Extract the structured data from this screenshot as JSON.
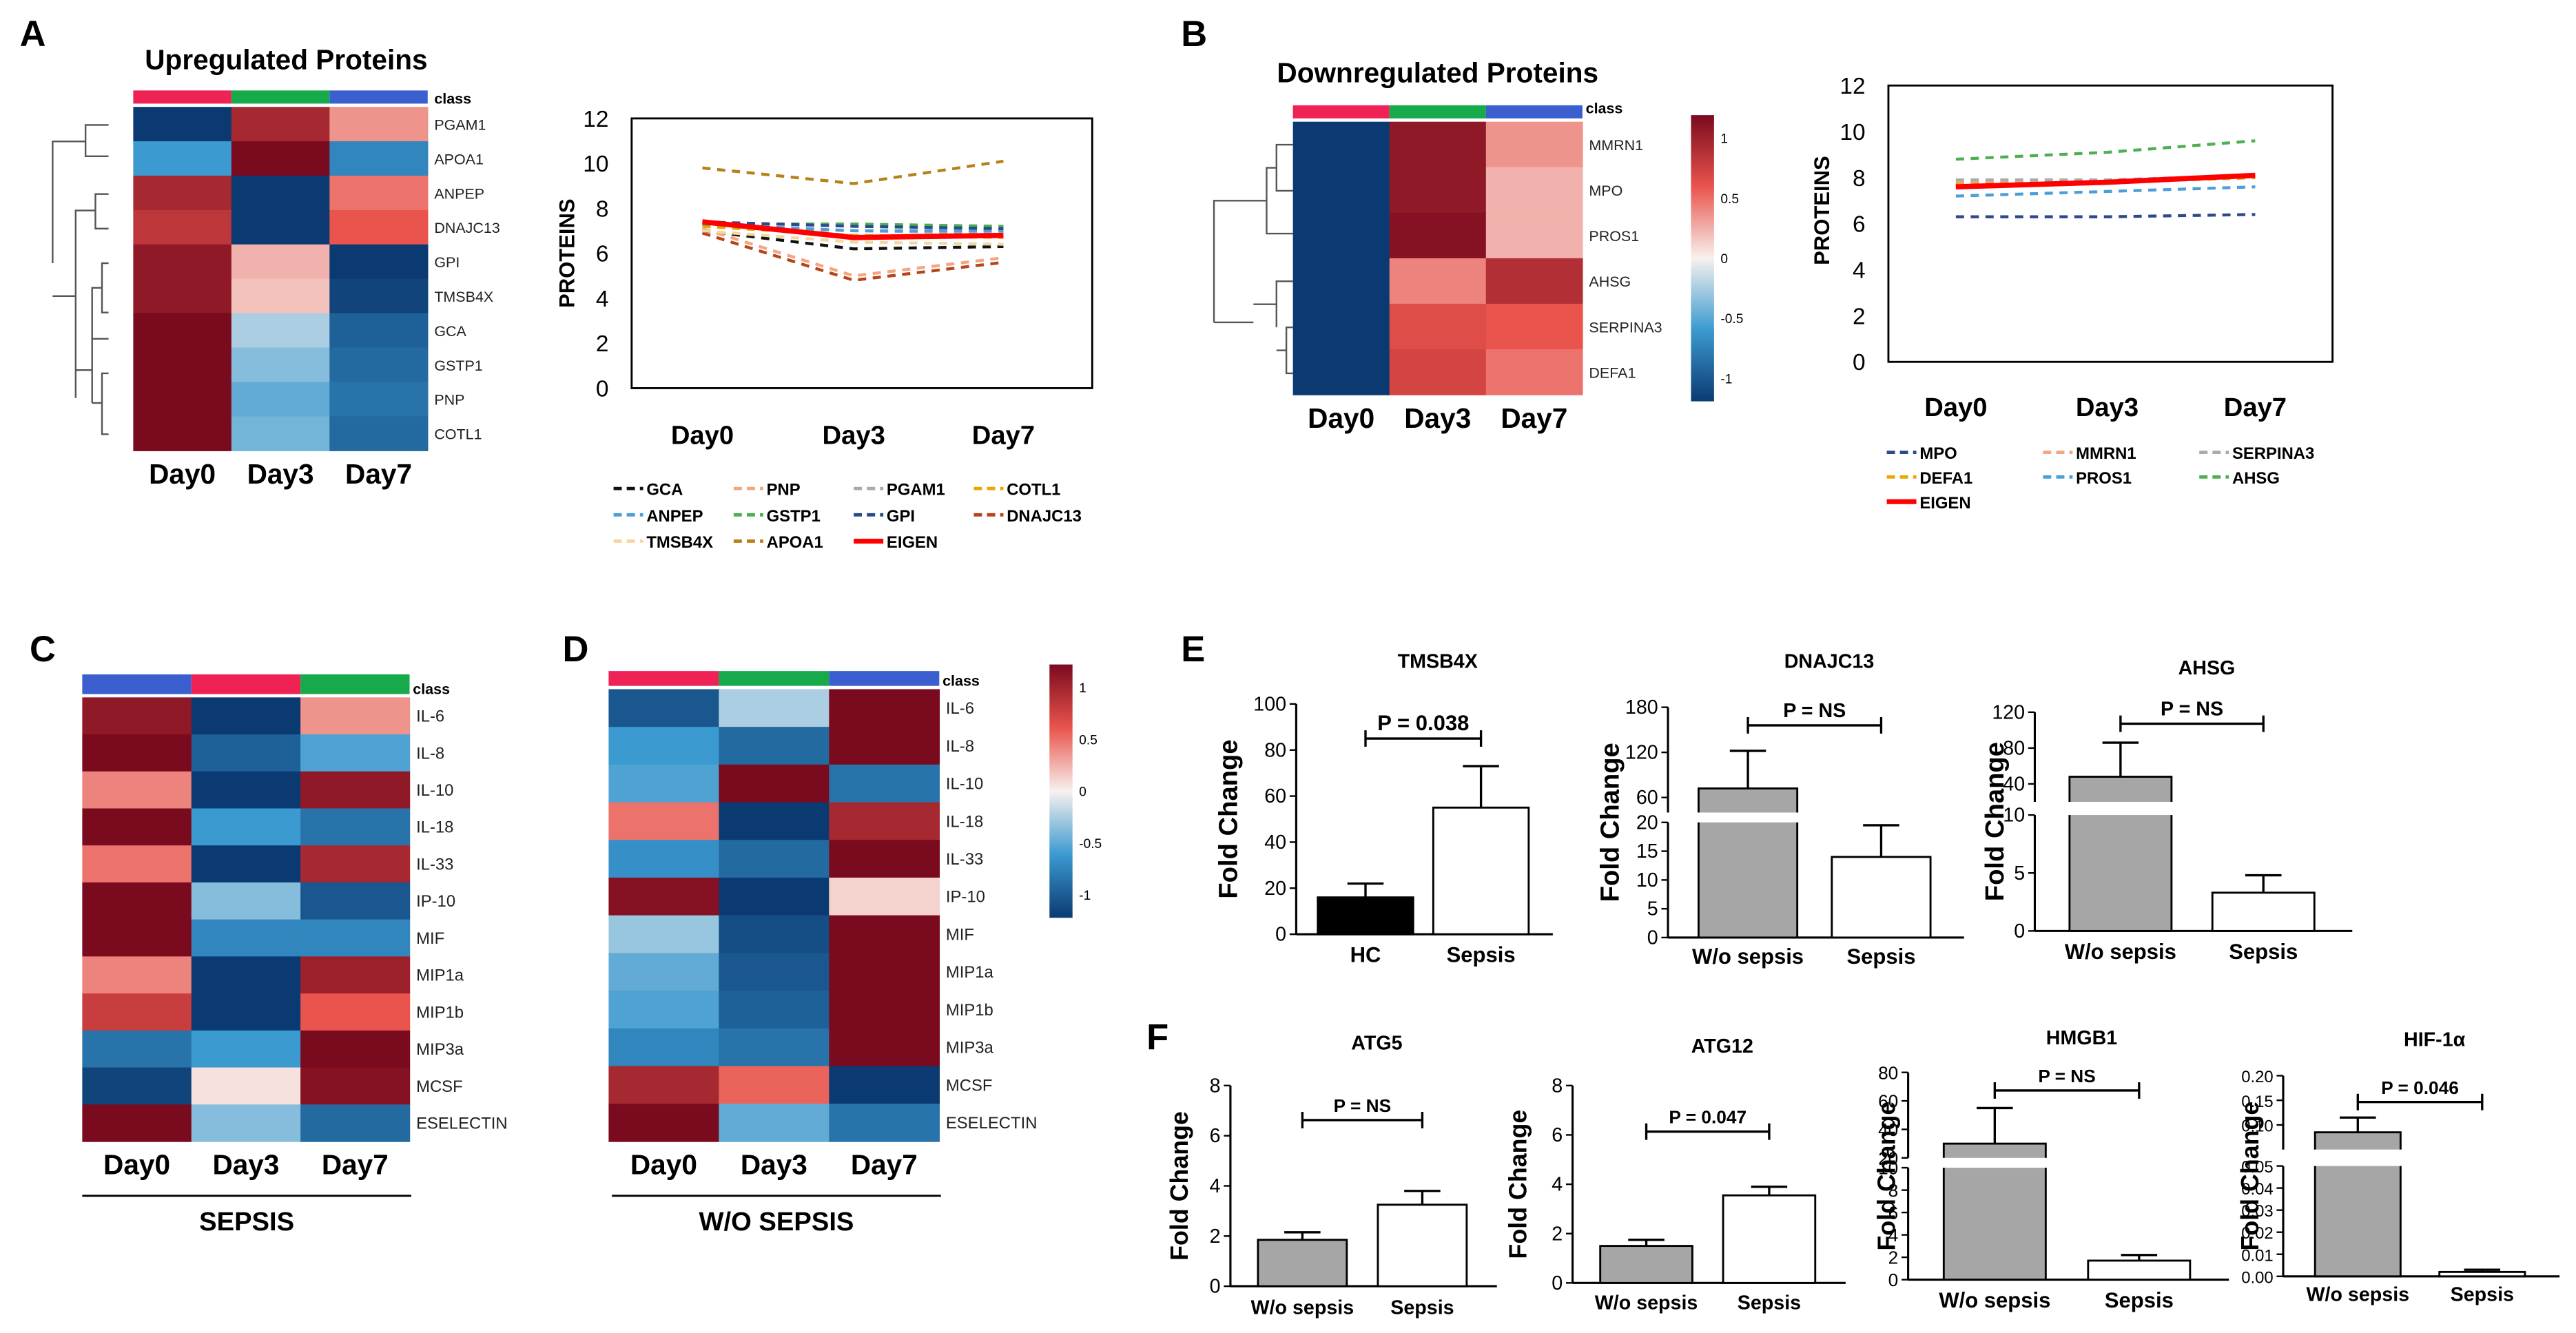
{
  "panels": {
    "A": {
      "letter": "A",
      "heatmap": {
        "title": "Upregulated Proteins",
        "class_label": "class",
        "columns": [
          "Day0",
          "Day3",
          "Day7"
        ],
        "rows": [
          {
            "name": "PGAM1",
            "values": [
              -1.0,
              0.8,
              0.3
            ]
          },
          {
            "name": "APOA1",
            "values": [
              -0.5,
              1.0,
              -0.6
            ]
          },
          {
            "name": "ANPEP",
            "values": [
              0.8,
              -1.0,
              0.4
            ]
          },
          {
            "name": "DNAJC13",
            "values": [
              0.7,
              -1.0,
              0.5
            ]
          },
          {
            "name": "GPI",
            "values": [
              0.9,
              0.2,
              -1.0
            ]
          },
          {
            "name": "TMSB4X",
            "values": [
              0.9,
              0.15,
              -0.95
            ]
          },
          {
            "name": "GCA",
            "values": [
              1.0,
              -0.2,
              -0.8
            ]
          },
          {
            "name": "GSTP1",
            "values": [
              1.0,
              -0.3,
              -0.75
            ]
          },
          {
            "name": "PNP",
            "values": [
              1.0,
              -0.4,
              -0.7
            ]
          },
          {
            "name": "COTL1",
            "values": [
              1.0,
              -0.35,
              -0.75
            ]
          }
        ]
      },
      "chart_data": {
        "type": "line",
        "ylabel": "PROTEINS",
        "categories": [
          "Day0",
          "Day3",
          "Day7"
        ],
        "ylim": [
          0,
          12
        ],
        "yticks": [
          0,
          2,
          4,
          6,
          8,
          10,
          12
        ],
        "series": [
          {
            "name": "GCA",
            "values": [
              7.0,
              6.2,
              6.3
            ],
            "color": "#111111",
            "dash": true
          },
          {
            "name": "PNP",
            "values": [
              7.1,
              5.0,
              5.8
            ],
            "color": "#f4a582",
            "dash": true
          },
          {
            "name": "PGAM1",
            "values": [
              7.2,
              7.0,
              6.9
            ],
            "color": "#aaaaaa",
            "dash": true
          },
          {
            "name": "COTL1",
            "values": [
              7.2,
              6.8,
              6.7
            ],
            "color": "#e8a800",
            "dash": true
          },
          {
            "name": "ANPEP",
            "values": [
              7.3,
              7.0,
              7.0
            ],
            "color": "#4c9ed9",
            "dash": true
          },
          {
            "name": "GSTP1",
            "values": [
              7.3,
              7.3,
              7.2
            ],
            "color": "#4caf50",
            "dash": true
          },
          {
            "name": "GPI",
            "values": [
              7.4,
              7.2,
              7.1
            ],
            "color": "#2b4a8a",
            "dash": true
          },
          {
            "name": "DNAJC13",
            "values": [
              6.9,
              4.8,
              5.6
            ],
            "color": "#b5451b",
            "dash": true
          },
          {
            "name": "TMSB4X",
            "values": [
              7.0,
              6.5,
              6.4
            ],
            "color": "#f2d7a0",
            "dash": true
          },
          {
            "name": "APOA1",
            "values": [
              9.8,
              9.1,
              10.1
            ],
            "color": "#b7801a",
            "dash": true
          },
          {
            "name": "EIGEN",
            "values": [
              7.4,
              6.7,
              6.8
            ],
            "color": "#ff0000",
            "dash": false
          }
        ]
      }
    },
    "B": {
      "letter": "B",
      "heatmap": {
        "title": "Downregulated Proteins",
        "class_label": "class",
        "columns": [
          "Day0",
          "Day3",
          "Day7"
        ],
        "rows": [
          {
            "name": "MMRN1",
            "values": [
              -1.0,
              0.9,
              0.3
            ]
          },
          {
            "name": "MPO",
            "values": [
              -1.0,
              0.9,
              0.2
            ]
          },
          {
            "name": "PROS1",
            "values": [
              -1.0,
              0.95,
              0.2
            ]
          },
          {
            "name": "AHSG",
            "values": [
              -1.0,
              0.35,
              0.75
            ]
          },
          {
            "name": "SERPINA3",
            "values": [
              -1.0,
              0.55,
              0.5
            ]
          },
          {
            "name": "DEFA1",
            "values": [
              -1.0,
              0.6,
              0.4
            ]
          }
        ]
      },
      "colorbar": {
        "ticks": [
          "1",
          "0.5",
          "0",
          "-0.5",
          "-1"
        ]
      },
      "chart_data": {
        "type": "line",
        "ylabel": "PROTEINS",
        "categories": [
          "Day0",
          "Day3",
          "Day7"
        ],
        "ylim": [
          0,
          12
        ],
        "yticks": [
          0,
          2,
          4,
          6,
          8,
          10,
          12
        ],
        "series": [
          {
            "name": "MPO",
            "values": [
              6.3,
              6.3,
              6.4
            ],
            "color": "#2b4a8a",
            "dash": true
          },
          {
            "name": "MMRN1",
            "values": [
              7.8,
              7.8,
              8.0
            ],
            "color": "#f4a582",
            "dash": true
          },
          {
            "name": "SERPINA3",
            "values": [
              7.9,
              7.9,
              8.1
            ],
            "color": "#aaaaaa",
            "dash": true
          },
          {
            "name": "DEFA1",
            "values": [
              7.7,
              7.8,
              8.0
            ],
            "color": "#e8a800",
            "dash": true
          },
          {
            "name": "PROS1",
            "values": [
              7.2,
              7.4,
              7.6
            ],
            "color": "#4c9ed9",
            "dash": true
          },
          {
            "name": "AHSG",
            "values": [
              8.8,
              9.1,
              9.6
            ],
            "color": "#4caf50",
            "dash": true
          },
          {
            "name": "EIGEN",
            "values": [
              7.6,
              7.8,
              8.1
            ],
            "color": "#ff0000",
            "dash": false
          }
        ]
      }
    },
    "C": {
      "letter": "C",
      "class_label": "class",
      "group_label": "SEPSIS",
      "columns": [
        "Day0",
        "Day3",
        "Day7"
      ],
      "rows": [
        {
          "name": "IL-6",
          "values": [
            0.9,
            -1.0,
            0.3
          ]
        },
        {
          "name": "IL-8",
          "values": [
            1.0,
            -0.8,
            -0.45
          ]
        },
        {
          "name": "IL-10",
          "values": [
            0.35,
            -1.0,
            0.9
          ]
        },
        {
          "name": "IL-18",
          "values": [
            1.0,
            -0.5,
            -0.7
          ]
        },
        {
          "name": "IL-33",
          "values": [
            0.4,
            -1.0,
            0.8
          ]
        },
        {
          "name": "IP-10",
          "values": [
            1.0,
            -0.3,
            -0.85
          ]
        },
        {
          "name": "MIF",
          "values": [
            1.0,
            -0.6,
            -0.6
          ]
        },
        {
          "name": "MIP1a",
          "values": [
            0.35,
            -1.0,
            0.85
          ]
        },
        {
          "name": "MIP1b",
          "values": [
            0.65,
            -1.0,
            0.5
          ]
        },
        {
          "name": "MIP3a",
          "values": [
            -0.7,
            -0.5,
            1.0
          ]
        },
        {
          "name": "MCSF",
          "values": [
            -0.95,
            0.05,
            0.95
          ]
        },
        {
          "name": "ESELECTIN",
          "values": [
            1.0,
            -0.3,
            -0.75
          ]
        }
      ]
    },
    "D": {
      "letter": "D",
      "class_label": "class",
      "group_label": "W/O SEPSIS",
      "columns": [
        "Day0",
        "Day3",
        "Day7"
      ],
      "colorbar": {
        "ticks": [
          "1",
          "0.5",
          "0",
          "-0.5",
          "-1"
        ]
      },
      "rows": [
        {
          "name": "IL-6",
          "values": [
            -0.85,
            -0.2,
            1.0
          ]
        },
        {
          "name": "IL-8",
          "values": [
            -0.5,
            -0.75,
            1.0
          ]
        },
        {
          "name": "IL-10",
          "values": [
            -0.45,
            1.0,
            -0.7
          ]
        },
        {
          "name": "IL-18",
          "values": [
            0.4,
            -1.0,
            0.8
          ]
        },
        {
          "name": "IL-33",
          "values": [
            -0.55,
            -0.75,
            1.0
          ]
        },
        {
          "name": "IP-10",
          "values": [
            0.95,
            -1.0,
            0.1
          ]
        },
        {
          "name": "MIF",
          "values": [
            -0.25,
            -0.9,
            1.0
          ]
        },
        {
          "name": "MIP1a",
          "values": [
            -0.4,
            -0.85,
            1.0
          ]
        },
        {
          "name": "MIP1b",
          "values": [
            -0.45,
            -0.8,
            1.0
          ]
        },
        {
          "name": "MIP3a",
          "values": [
            -0.6,
            -0.7,
            1.0
          ]
        },
        {
          "name": "MCSF",
          "values": [
            0.8,
            0.45,
            -1.0
          ]
        },
        {
          "name": "ESELECTIN",
          "values": [
            1.0,
            -0.4,
            -0.7
          ]
        }
      ]
    },
    "E": {
      "letter": "E",
      "charts": [
        {
          "type": "bar",
          "title": "TMSB4X",
          "ylabel": "Fold Change",
          "categories": [
            "HC",
            "Sepsis"
          ],
          "values": [
            16,
            55
          ],
          "errors": [
            6,
            18
          ],
          "fills": [
            "#000000",
            "#ffffff"
          ],
          "ylim": [
            0,
            100
          ],
          "yticks": [
            0,
            20,
            40,
            60,
            80,
            100
          ],
          "pvalue": "P = 0.038"
        },
        {
          "type": "bar",
          "title": "DNAJC13",
          "ylabel": "Fold Change",
          "categories": [
            "W/o sepsis",
            "Sepsis"
          ],
          "values": [
            72,
            14
          ],
          "errors": [
            50,
            5.5
          ],
          "fills": [
            "#a6a6a6",
            "#ffffff"
          ],
          "axis_break": {
            "lower": [
              0,
              20
            ],
            "upper": [
              40,
              180
            ]
          },
          "yticks": [
            0,
            5,
            10,
            15,
            20,
            60,
            120,
            180
          ],
          "pvalue": "P = NS"
        },
        {
          "type": "bar",
          "title": "AHSG",
          "ylabel": "Fold Change",
          "categories": [
            "W/o sepsis",
            "Sepsis"
          ],
          "values": [
            48,
            3.3
          ],
          "errors": [
            38,
            1.5
          ],
          "fills": [
            "#a6a6a6",
            "#ffffff"
          ],
          "axis_break": {
            "lower": [
              0,
              10
            ],
            "upper": [
              20,
              120
            ]
          },
          "yticks": [
            0,
            5,
            10,
            40,
            80,
            120
          ],
          "pvalue": "P = NS"
        }
      ]
    },
    "F": {
      "letter": "F",
      "charts": [
        {
          "type": "bar",
          "title": "ATG5",
          "ylabel": "Fold Change",
          "categories": [
            "W/o sepsis",
            "Sepsis"
          ],
          "values": [
            1.85,
            3.25
          ],
          "errors": [
            0.3,
            0.55
          ],
          "fills": [
            "#a6a6a6",
            "#ffffff"
          ],
          "ylim": [
            0,
            8
          ],
          "yticks": [
            0,
            2,
            4,
            6,
            8
          ],
          "pvalue": "P = NS"
        },
        {
          "type": "bar",
          "title": "ATG12",
          "ylabel": "Fold Change",
          "categories": [
            "W/o sepsis",
            "Sepsis"
          ],
          "values": [
            1.5,
            3.55
          ],
          "errors": [
            0.25,
            0.35
          ],
          "fills": [
            "#a6a6a6",
            "#ffffff"
          ],
          "ylim": [
            0,
            8
          ],
          "yticks": [
            0,
            2,
            4,
            6,
            8
          ],
          "pvalue": "P = 0.047"
        },
        {
          "type": "bar",
          "title": "HMGB1",
          "ylabel": "Fold Change",
          "categories": [
            "W/o sepsis",
            "Sepsis"
          ],
          "values": [
            30,
            1.7
          ],
          "errors": [
            25,
            0.5
          ],
          "fills": [
            "#a6a6a6",
            "#ffffff"
          ],
          "axis_break": {
            "lower": [
              0,
              10
            ],
            "upper": [
              20,
              80
            ]
          },
          "yticks": [
            0,
            2,
            4,
            6,
            8,
            10,
            20,
            40,
            60,
            80
          ],
          "pvalue": "P = NS"
        },
        {
          "type": "bar",
          "title": "HIF-1α",
          "ylabel": "Fold Change",
          "categories": [
            "W/o sepsis",
            "Sepsis"
          ],
          "values": [
            0.085,
            0.002
          ],
          "errors": [
            0.03,
            0.001
          ],
          "fills": [
            "#a6a6a6",
            "#ffffff"
          ],
          "axis_break": {
            "lower": [
              0,
              0.05
            ],
            "upper": [
              0.05,
              0.2
            ]
          },
          "yticks": [
            0.0,
            0.01,
            0.02,
            0.03,
            0.04,
            0.05,
            0.1,
            0.15,
            0.2
          ],
          "ytick_labels": [
            "0.00",
            "0.01",
            "0.02",
            "0.03",
            "0.04",
            "0.05",
            "0.10",
            "0.15",
            "0.20"
          ],
          "pvalue": "P = 0.046"
        }
      ]
    }
  },
  "class_colors": {
    "Day0": "#ee2255",
    "Day3": "#16aa4a",
    "Day7": "#3b5fcf"
  },
  "c_class_order": [
    "Day7",
    "Day0",
    "Day3"
  ],
  "colormap": {
    "low": "#0b3a72",
    "mid": "#f7f1ee",
    "high": "#7a0a1e"
  }
}
